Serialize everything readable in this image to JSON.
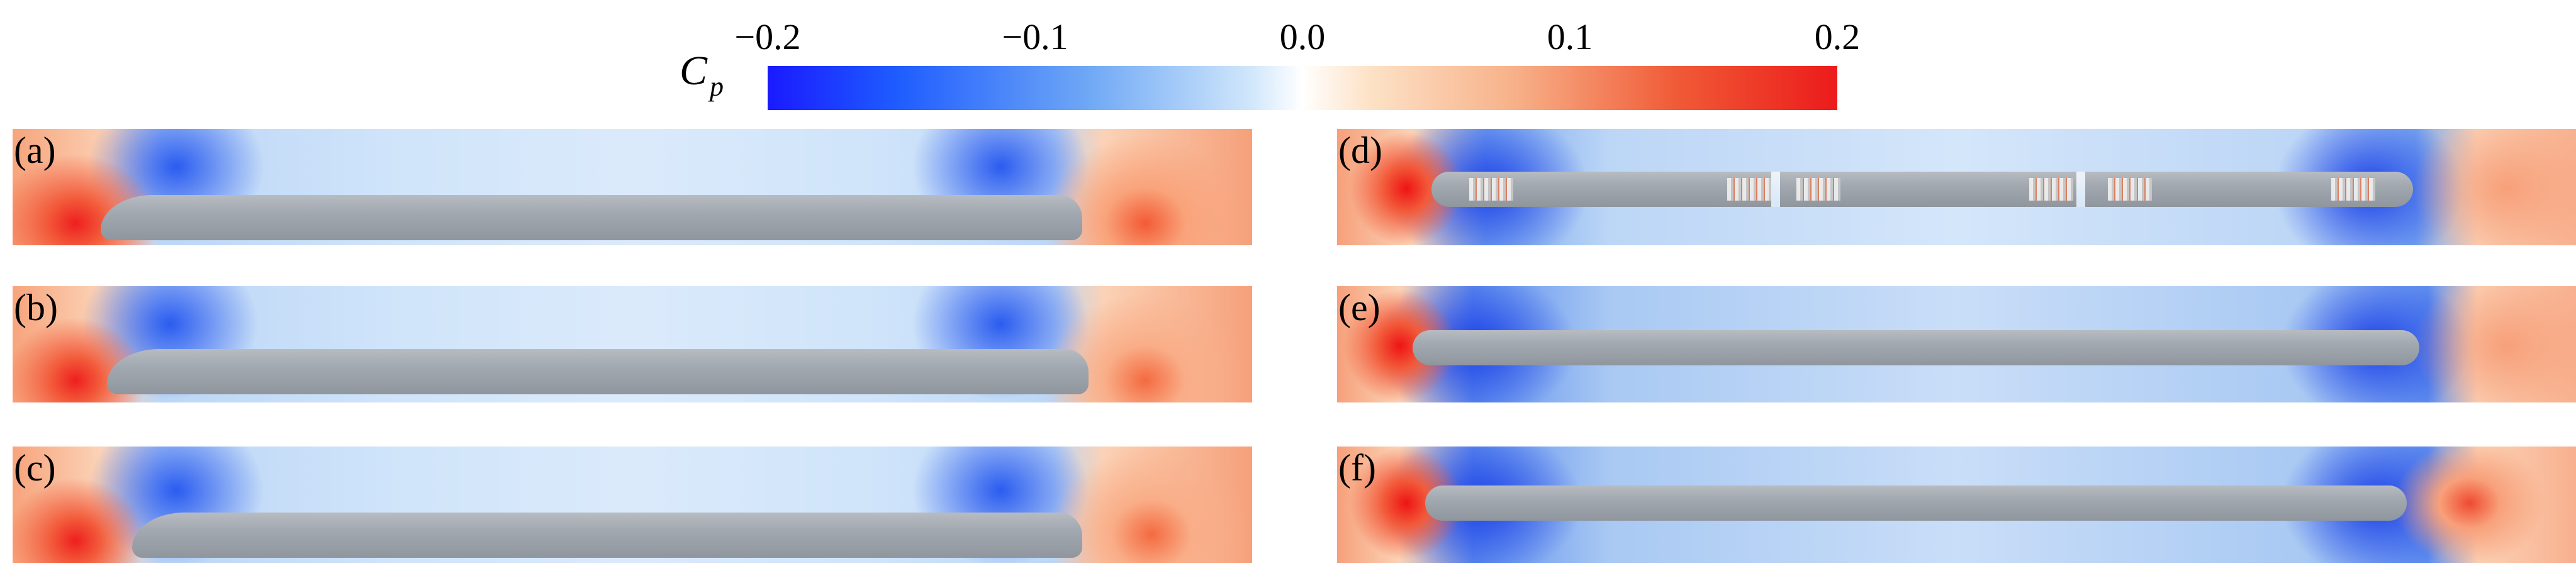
{
  "colorbar": {
    "label_main": "C",
    "label_sub": "p",
    "ticks": [
      "−0.2",
      "−0.1",
      "0.0",
      "0.1",
      "0.2"
    ],
    "min": -0.2,
    "max": 0.2,
    "colors": {
      "min": "#1a1aff",
      "mid": "#ffffff",
      "max": "#ec1b1b"
    }
  },
  "panels": [
    {
      "id": "a",
      "label": "(a)",
      "view": "side"
    },
    {
      "id": "b",
      "label": "(b)",
      "view": "side"
    },
    {
      "id": "c",
      "label": "(c)",
      "view": "side"
    },
    {
      "id": "d",
      "label": "(d)",
      "view": "top"
    },
    {
      "id": "e",
      "label": "(e)",
      "view": "top"
    },
    {
      "id": "f",
      "label": "(f)",
      "view": "top"
    }
  ]
}
